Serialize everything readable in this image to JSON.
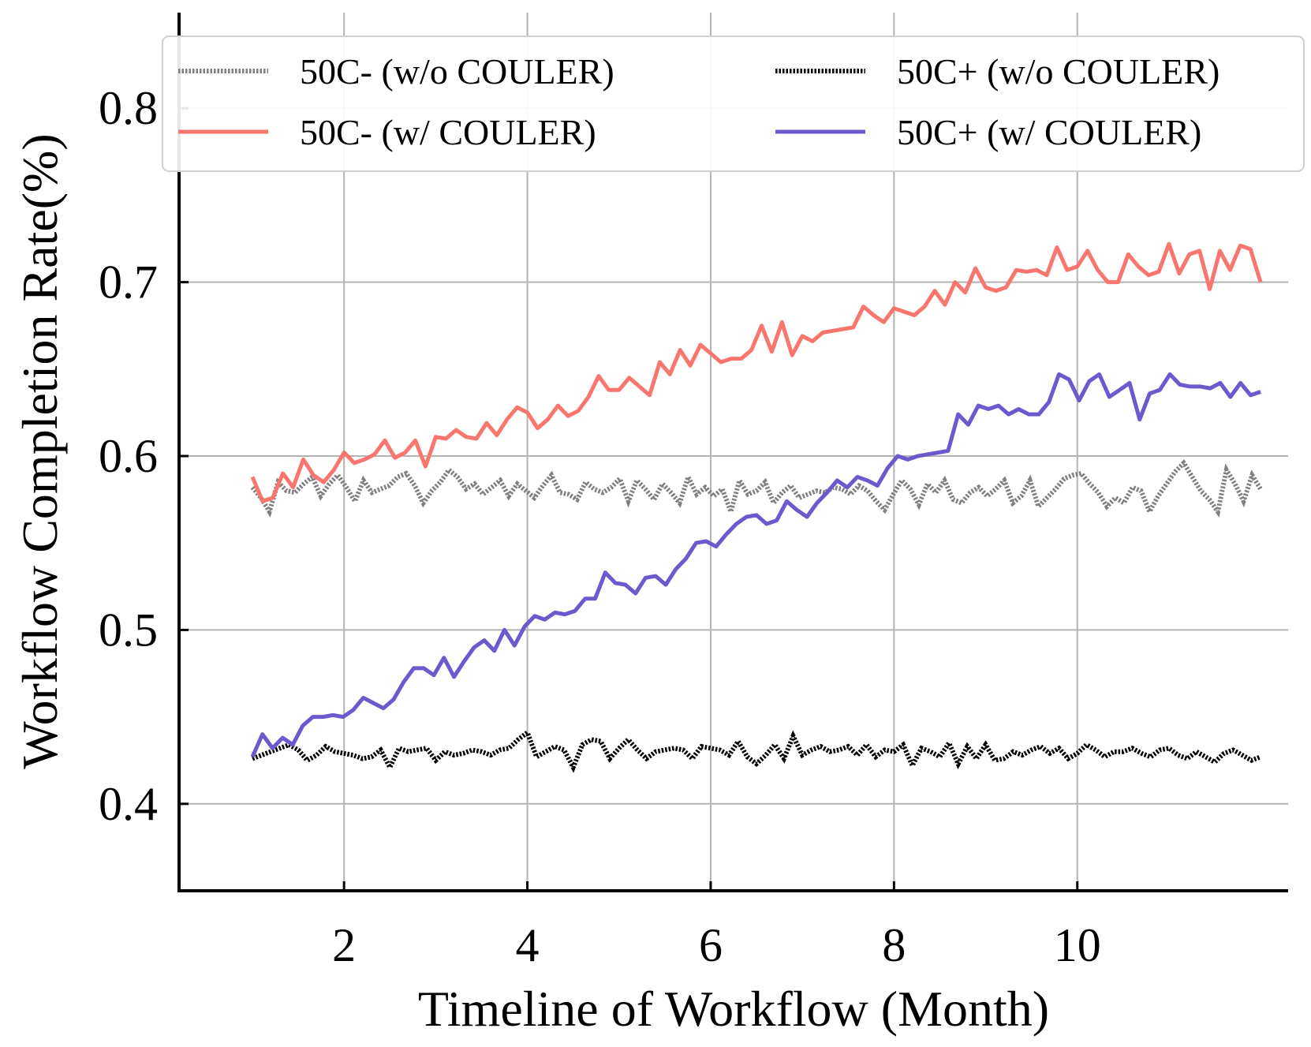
{
  "chart_data": {
    "type": "line",
    "title": "",
    "xlabel": "Timeline of Workflow (Month)",
    "ylabel": "Workflow Completion Rate(%)",
    "xlim": [
      0.2,
      12.3
    ],
    "ylim": [
      0.35,
      0.855
    ],
    "xticks": [
      2,
      4,
      6,
      8,
      10
    ],
    "yticks": [
      0.4,
      0.5,
      0.6,
      0.7,
      0.8
    ],
    "grid": true,
    "legend_position": "top",
    "x_start": 1.0,
    "x_end": 12.0,
    "series": [
      {
        "name": "50C- (w/o COULER)",
        "color": "#808080",
        "style": "dotted",
        "values": [
          0.582,
          0.576,
          0.568,
          0.585,
          0.58,
          0.579,
          0.584,
          0.588,
          0.577,
          0.584,
          0.589,
          0.582,
          0.574,
          0.586,
          0.579,
          0.581,
          0.583,
          0.588,
          0.59,
          0.583,
          0.573,
          0.58,
          0.585,
          0.592,
          0.588,
          0.581,
          0.584,
          0.578,
          0.582,
          0.586,
          0.577,
          0.584,
          0.58,
          0.576,
          0.583,
          0.589,
          0.579,
          0.578,
          0.575,
          0.585,
          0.581,
          0.579,
          0.582,
          0.587,
          0.574,
          0.586,
          0.581,
          0.575,
          0.584,
          0.579,
          0.573,
          0.588,
          0.578,
          0.582,
          0.577,
          0.581,
          0.568,
          0.586,
          0.578,
          0.58,
          0.585,
          0.573,
          0.579,
          0.583,
          0.576,
          0.578,
          0.58,
          0.579,
          0.582,
          0.581,
          0.578,
          0.583,
          0.58,
          0.574,
          0.569,
          0.578,
          0.586,
          0.581,
          0.572,
          0.584,
          0.579,
          0.586,
          0.575,
          0.573,
          0.579,
          0.582,
          0.577,
          0.581,
          0.586,
          0.573,
          0.577,
          0.586,
          0.571,
          0.576,
          0.581,
          0.587,
          0.589,
          0.59,
          0.584,
          0.579,
          0.571,
          0.576,
          0.573,
          0.582,
          0.58,
          0.568,
          0.577,
          0.584,
          0.591,
          0.596,
          0.588,
          0.58,
          0.575,
          0.568,
          0.592,
          0.584,
          0.574,
          0.589,
          0.581
        ]
      },
      {
        "name": "50C+ (w/o COULER)",
        "color": "#000000",
        "style": "dotted",
        "values": [
          0.426,
          0.428,
          0.43,
          0.432,
          0.434,
          0.431,
          0.425,
          0.428,
          0.433,
          0.43,
          0.429,
          0.428,
          0.426,
          0.427,
          0.431,
          0.421,
          0.432,
          0.43,
          0.431,
          0.432,
          0.425,
          0.43,
          0.428,
          0.429,
          0.431,
          0.43,
          0.428,
          0.431,
          0.432,
          0.437,
          0.441,
          0.427,
          0.43,
          0.433,
          0.431,
          0.421,
          0.434,
          0.437,
          0.436,
          0.426,
          0.432,
          0.437,
          0.431,
          0.426,
          0.43,
          0.431,
          0.432,
          0.431,
          0.426,
          0.433,
          0.432,
          0.431,
          0.428,
          0.436,
          0.427,
          0.423,
          0.428,
          0.434,
          0.426,
          0.439,
          0.428,
          0.431,
          0.433,
          0.43,
          0.431,
          0.433,
          0.428,
          0.434,
          0.427,
          0.431,
          0.43,
          0.434,
          0.422,
          0.432,
          0.43,
          0.427,
          0.435,
          0.423,
          0.433,
          0.426,
          0.434,
          0.425,
          0.426,
          0.43,
          0.428,
          0.431,
          0.433,
          0.429,
          0.432,
          0.426,
          0.429,
          0.434,
          0.431,
          0.427,
          0.43,
          0.43,
          0.432,
          0.429,
          0.427,
          0.431,
          0.432,
          0.428,
          0.426,
          0.43,
          0.427,
          0.424,
          0.429,
          0.431,
          0.428,
          0.425,
          0.427
        ]
      },
      {
        "name": "50C- (w/ COULER)",
        "color": "#f8766d",
        "style": "solid",
        "values": [
          0.588,
          0.574,
          0.576,
          0.59,
          0.582,
          0.598,
          0.589,
          0.585,
          0.592,
          0.602,
          0.596,
          0.598,
          0.601,
          0.609,
          0.599,
          0.602,
          0.609,
          0.594,
          0.611,
          0.61,
          0.615,
          0.611,
          0.61,
          0.619,
          0.612,
          0.621,
          0.628,
          0.625,
          0.616,
          0.621,
          0.629,
          0.623,
          0.626,
          0.634,
          0.646,
          0.638,
          0.638,
          0.645,
          0.64,
          0.635,
          0.654,
          0.647,
          0.661,
          0.652,
          0.664,
          0.659,
          0.654,
          0.656,
          0.656,
          0.661,
          0.675,
          0.66,
          0.677,
          0.658,
          0.669,
          0.666,
          0.671,
          0.672,
          0.673,
          0.674,
          0.686,
          0.681,
          0.677,
          0.685,
          0.683,
          0.681,
          0.686,
          0.695,
          0.687,
          0.7,
          0.694,
          0.708,
          0.697,
          0.695,
          0.697,
          0.707,
          0.706,
          0.707,
          0.704,
          0.72,
          0.707,
          0.709,
          0.718,
          0.707,
          0.7,
          0.7,
          0.716,
          0.709,
          0.704,
          0.706,
          0.722,
          0.705,
          0.716,
          0.718,
          0.696,
          0.718,
          0.707,
          0.721,
          0.719,
          0.7
        ]
      },
      {
        "name": "50C+ (w/ COULER)",
        "color": "#6a5acd",
        "style": "solid",
        "values": [
          0.427,
          0.44,
          0.432,
          0.438,
          0.434,
          0.445,
          0.45,
          0.45,
          0.451,
          0.45,
          0.454,
          0.461,
          0.458,
          0.455,
          0.46,
          0.47,
          0.478,
          0.478,
          0.474,
          0.484,
          0.473,
          0.482,
          0.49,
          0.494,
          0.488,
          0.5,
          0.491,
          0.502,
          0.508,
          0.506,
          0.51,
          0.509,
          0.511,
          0.518,
          0.518,
          0.533,
          0.527,
          0.526,
          0.521,
          0.53,
          0.531,
          0.526,
          0.535,
          0.541,
          0.55,
          0.551,
          0.548,
          0.555,
          0.561,
          0.565,
          0.566,
          0.561,
          0.563,
          0.574,
          0.569,
          0.565,
          0.573,
          0.579,
          0.586,
          0.582,
          0.588,
          0.586,
          0.583,
          0.593,
          0.6,
          0.598,
          0.6,
          0.601,
          0.602,
          0.603,
          0.624,
          0.618,
          0.629,
          0.627,
          0.629,
          0.624,
          0.627,
          0.624,
          0.624,
          0.631,
          0.647,
          0.644,
          0.632,
          0.643,
          0.647,
          0.634,
          0.638,
          0.642,
          0.621,
          0.636,
          0.638,
          0.647,
          0.641,
          0.64,
          0.64,
          0.639,
          0.642,
          0.634,
          0.642,
          0.635,
          0.637
        ]
      }
    ]
  }
}
